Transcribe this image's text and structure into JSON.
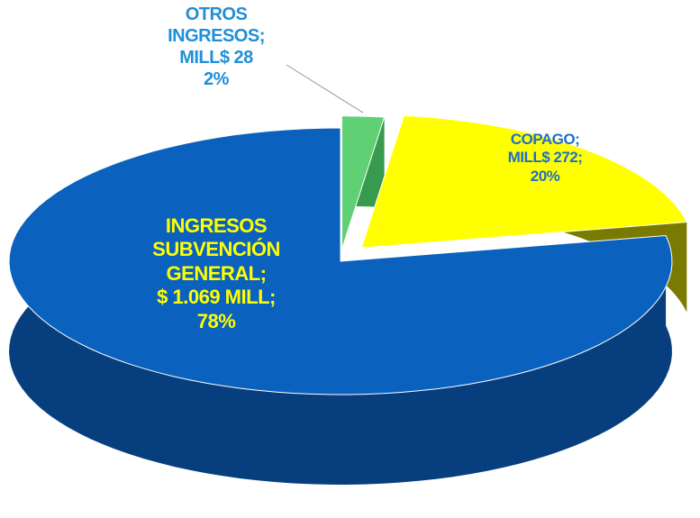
{
  "chart_data": {
    "type": "pie",
    "categories": [
      "INGRESOS SUBVENCIÓN GENERAL;",
      "COPAGO;",
      "OTROS INGRESOS;"
    ],
    "values": [
      1069,
      272,
      28
    ],
    "value_labels": [
      "$ 1.069 MILL;",
      "MILL$ 272;",
      "MILL$ 28"
    ],
    "percent_labels": [
      "78%",
      "20%",
      "2%"
    ],
    "colors": [
      "#0a62be",
      "#ffff00",
      "#5fd074"
    ],
    "side_colors": [
      "#073f7e",
      "#7b7a00",
      "#379a4c"
    ],
    "label_colors": [
      "#ffff00",
      "#1f6fc6",
      "#1f8fd8"
    ]
  }
}
